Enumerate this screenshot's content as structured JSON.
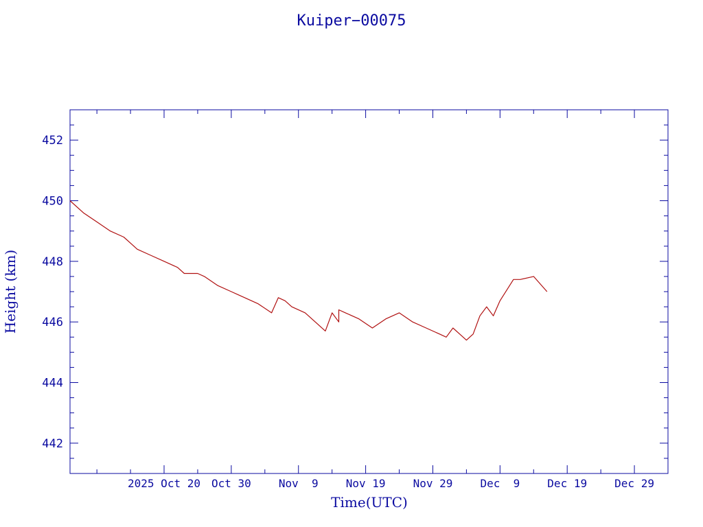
{
  "chart_data": {
    "type": "line",
    "title": "Kuiper−00075",
    "xlabel": "Time(UTC)",
    "ylabel": "Height (km)",
    "colors": {
      "axes": "#0a0aa0",
      "series": "#b01010"
    },
    "x_axis": {
      "kind": "date",
      "range": [
        "2025-10-06",
        "2026-01-03"
      ],
      "ticks": [
        {
          "date": "2025-10-20",
          "label": "2025 Oct 20"
        },
        {
          "date": "2025-10-30",
          "label": "Oct 30"
        },
        {
          "date": "2025-11-09",
          "label": "Nov  9"
        },
        {
          "date": "2025-11-19",
          "label": "Nov 19"
        },
        {
          "date": "2025-11-29",
          "label": "Nov 29"
        },
        {
          "date": "2025-12-09",
          "label": "Dec  9"
        },
        {
          "date": "2025-12-19",
          "label": "Dec 19"
        },
        {
          "date": "2025-12-29",
          "label": "Dec 29"
        }
      ]
    },
    "y_axis": {
      "range": [
        441,
        453
      ],
      "ticks": [
        442,
        444,
        446,
        448,
        450,
        452
      ]
    },
    "grid": false,
    "legend": "none",
    "series": [
      {
        "x": [
          "2025-10-06",
          "2025-10-08",
          "2025-10-10",
          "2025-10-12",
          "2025-10-14",
          "2025-10-15",
          "2025-10-16",
          "2025-10-18",
          "2025-10-20",
          "2025-10-22",
          "2025-10-23",
          "2025-10-24",
          "2025-10-25",
          "2025-10-26",
          "2025-10-28",
          "2025-10-30",
          "2025-10-31",
          "2025-11-01",
          "2025-11-03",
          "2025-11-05",
          "2025-11-06",
          "2025-11-07",
          "2025-11-08",
          "2025-11-08",
          "2025-11-10",
          "2025-11-12",
          "2025-11-13",
          "2025-11-14",
          "2025-11-15",
          "2025-11-15",
          "2025-11-16",
          "2025-11-18",
          "2025-11-20",
          "2025-11-20",
          "2025-11-22",
          "2025-11-24",
          "2025-11-26",
          "2025-11-28",
          "2025-11-30",
          "2025-12-01",
          "2025-12-02",
          "2025-12-03",
          "2025-12-04",
          "2025-12-05",
          "2025-12-06",
          "2025-12-07",
          "2025-12-08",
          "2025-12-09",
          "2025-12-11",
          "2025-12-12",
          "2025-12-14",
          "2025-12-16"
        ],
        "y": [
          450.0,
          449.6,
          449.3,
          449.0,
          448.8,
          448.6,
          448.4,
          448.2,
          448.0,
          447.8,
          447.6,
          447.6,
          447.6,
          447.5,
          447.2,
          447.0,
          446.9,
          446.8,
          446.6,
          446.3,
          446.8,
          446.7,
          446.5,
          446.5,
          446.3,
          445.9,
          445.7,
          446.3,
          446.0,
          446.4,
          446.3,
          446.1,
          445.8,
          445.8,
          446.1,
          446.3,
          446.0,
          445.8,
          445.6,
          445.5,
          445.8,
          445.6,
          445.4,
          445.6,
          446.2,
          446.5,
          446.2,
          446.7,
          447.4,
          447.4,
          447.5,
          447.0
        ]
      }
    ]
  }
}
